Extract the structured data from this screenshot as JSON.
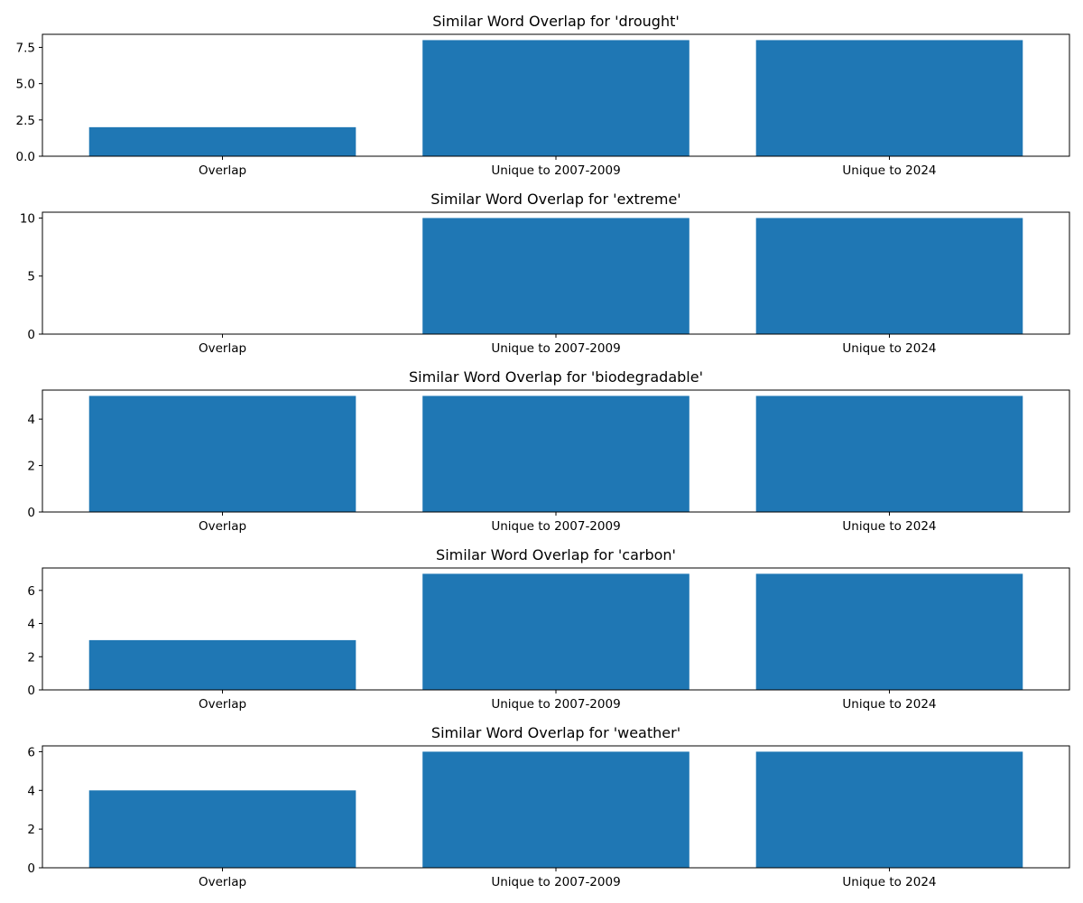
{
  "chart_data": [
    {
      "type": "bar",
      "title": "Similar Word Overlap for 'drought'",
      "categories": [
        "Overlap",
        "Unique to 2007-2009",
        "Unique to 2024"
      ],
      "values": [
        2,
        8,
        8
      ],
      "ylim": [
        0,
        8.4
      ],
      "yticks": [
        0.0,
        2.5,
        5.0,
        7.5
      ],
      "ytick_labels": [
        "0.0",
        "2.5",
        "5.0",
        "7.5"
      ],
      "color": "#1f77b4",
      "grid": false
    },
    {
      "type": "bar",
      "title": "Similar Word Overlap for 'extreme'",
      "categories": [
        "Overlap",
        "Unique to 2007-2009",
        "Unique to 2024"
      ],
      "values": [
        0,
        10,
        10
      ],
      "ylim": [
        0,
        10.5
      ],
      "yticks": [
        0,
        5,
        10
      ],
      "ytick_labels": [
        "0",
        "5",
        "10"
      ],
      "color": "#1f77b4",
      "grid": false
    },
    {
      "type": "bar",
      "title": "Similar Word Overlap for 'biodegradable'",
      "categories": [
        "Overlap",
        "Unique to 2007-2009",
        "Unique to 2024"
      ],
      "values": [
        5,
        5,
        5
      ],
      "ylim": [
        0,
        5.25
      ],
      "yticks": [
        0,
        2,
        4
      ],
      "ytick_labels": [
        "0",
        "2",
        "4"
      ],
      "color": "#1f77b4",
      "grid": false
    },
    {
      "type": "bar",
      "title": "Similar Word Overlap for 'carbon'",
      "categories": [
        "Overlap",
        "Unique to 2007-2009",
        "Unique to 2024"
      ],
      "values": [
        3,
        7,
        7
      ],
      "ylim": [
        0,
        7.35
      ],
      "yticks": [
        0,
        2,
        4,
        6
      ],
      "ytick_labels": [
        "0",
        "2",
        "4",
        "6"
      ],
      "color": "#1f77b4",
      "grid": false
    },
    {
      "type": "bar",
      "title": "Similar Word Overlap for 'weather'",
      "categories": [
        "Overlap",
        "Unique to 2007-2009",
        "Unique to 2024"
      ],
      "values": [
        4,
        6,
        6
      ],
      "ylim": [
        0,
        6.3
      ],
      "yticks": [
        0,
        2,
        4,
        6
      ],
      "ytick_labels": [
        "0",
        "2",
        "4",
        "6"
      ],
      "color": "#1f77b4",
      "grid": false
    }
  ]
}
